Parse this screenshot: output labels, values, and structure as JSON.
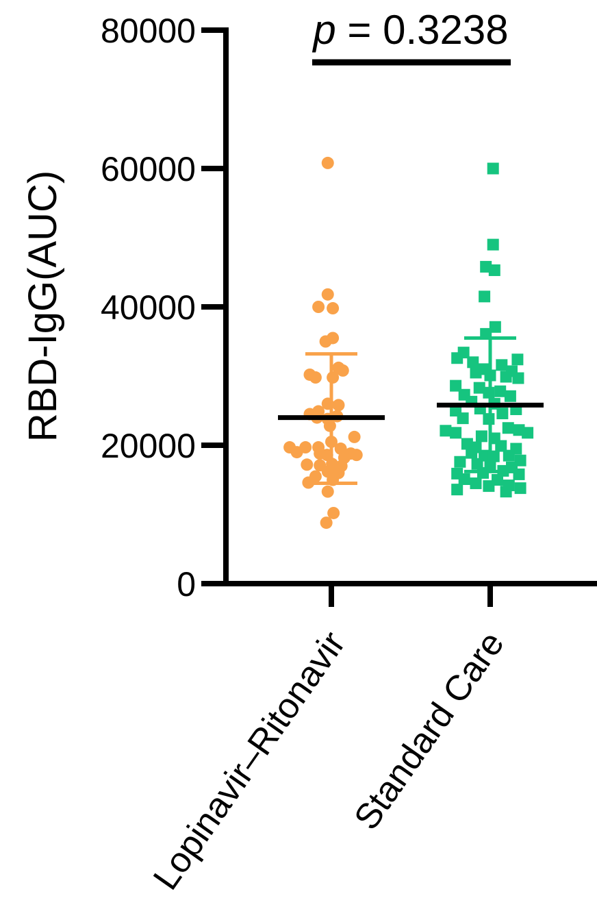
{
  "chart_data": {
    "type": "scatter",
    "subtype": "column-scatter-dot-plot",
    "ylabel": "RBD-IgG(AUC)",
    "ylim": [
      0,
      80000
    ],
    "yticks": [
      0,
      20000,
      40000,
      60000,
      80000
    ],
    "ytick_labels": [
      "0",
      "20000",
      "40000",
      "60000",
      "80000"
    ],
    "categories": [
      "Lopinavir–Ritonavir",
      "Standard Care"
    ],
    "grid": false,
    "legend": "none",
    "annotation": {
      "p_letter": "p",
      "p_rest": " = 0.3238"
    },
    "series": [
      {
        "category": "Lopinavir–Ritonavir",
        "color": "#F9A24A",
        "marker": "circle",
        "mean": 24000,
        "error_upper": 33200,
        "error_lower": 14500,
        "points": [
          {
            "offset": -0.05,
            "value": 60800
          },
          {
            "offset": -0.05,
            "value": 41800
          },
          {
            "offset": -0.18,
            "value": 40000
          },
          {
            "offset": 0.02,
            "value": 39800
          },
          {
            "offset": 0.02,
            "value": 35500
          },
          {
            "offset": -0.08,
            "value": 35000
          },
          {
            "offset": 0.1,
            "value": 31200
          },
          {
            "offset": 0.16,
            "value": 30800
          },
          {
            "offset": -0.3,
            "value": 30200
          },
          {
            "offset": -0.22,
            "value": 29800
          },
          {
            "offset": 0.02,
            "value": 29800
          },
          {
            "offset": -0.05,
            "value": 26000
          },
          {
            "offset": 0.1,
            "value": 25800
          },
          {
            "offset": -0.18,
            "value": 24900
          },
          {
            "offset": -0.3,
            "value": 24500
          },
          {
            "offset": -0.2,
            "value": 24000
          },
          {
            "offset": -0.05,
            "value": 23800
          },
          {
            "offset": 0.08,
            "value": 24200
          },
          {
            "offset": -0.02,
            "value": 22800
          },
          {
            "offset": 0.32,
            "value": 21200
          },
          {
            "offset": 0.0,
            "value": 20500
          },
          {
            "offset": -0.58,
            "value": 19700
          },
          {
            "offset": -0.36,
            "value": 19700
          },
          {
            "offset": -0.18,
            "value": 19700
          },
          {
            "offset": 0.13,
            "value": 19500
          },
          {
            "offset": -0.48,
            "value": 19000
          },
          {
            "offset": -0.16,
            "value": 18800
          },
          {
            "offset": -0.06,
            "value": 18600
          },
          {
            "offset": 0.27,
            "value": 18800
          },
          {
            "offset": 0.35,
            "value": 18600
          },
          {
            "offset": 0.18,
            "value": 18200
          },
          {
            "offset": -0.34,
            "value": 17200
          },
          {
            "offset": -0.16,
            "value": 17100
          },
          {
            "offset": 0.01,
            "value": 17300
          },
          {
            "offset": 0.14,
            "value": 17000
          },
          {
            "offset": -0.05,
            "value": 16200
          },
          {
            "offset": 0.1,
            "value": 16000
          },
          {
            "offset": -0.22,
            "value": 15500
          },
          {
            "offset": 0.02,
            "value": 15000
          },
          {
            "offset": -0.32,
            "value": 14600
          },
          {
            "offset": -0.05,
            "value": 13300
          },
          {
            "offset": 0.03,
            "value": 10200
          },
          {
            "offset": -0.07,
            "value": 8800
          }
        ]
      },
      {
        "category": "Standard Care",
        "color": "#16C47F",
        "marker": "square",
        "mean": 25800,
        "error_upper": 35500,
        "error_lower": 16200,
        "points": [
          {
            "offset": 0.04,
            "value": 60000
          },
          {
            "offset": 0.04,
            "value": 49000
          },
          {
            "offset": -0.06,
            "value": 45800
          },
          {
            "offset": 0.06,
            "value": 45300
          },
          {
            "offset": -0.08,
            "value": 41500
          },
          {
            "offset": 0.07,
            "value": 37100
          },
          {
            "offset": -0.06,
            "value": 36100
          },
          {
            "offset": -0.37,
            "value": 33400
          },
          {
            "offset": -0.46,
            "value": 32600
          },
          {
            "offset": 0.38,
            "value": 32400
          },
          {
            "offset": -0.24,
            "value": 32000
          },
          {
            "offset": 0.16,
            "value": 31600
          },
          {
            "offset": -0.1,
            "value": 31000
          },
          {
            "offset": -0.2,
            "value": 30500
          },
          {
            "offset": 0.3,
            "value": 30700
          },
          {
            "offset": 0.0,
            "value": 30100
          },
          {
            "offset": 0.22,
            "value": 29900
          },
          {
            "offset": 0.39,
            "value": 29700
          },
          {
            "offset": -0.48,
            "value": 28600
          },
          {
            "offset": -0.15,
            "value": 28300
          },
          {
            "offset": -0.02,
            "value": 27600
          },
          {
            "offset": 0.14,
            "value": 27800
          },
          {
            "offset": -0.36,
            "value": 27300
          },
          {
            "offset": 0.28,
            "value": 27100
          },
          {
            "offset": -0.26,
            "value": 26300
          },
          {
            "offset": 0.06,
            "value": 26000
          },
          {
            "offset": -0.48,
            "value": 25000
          },
          {
            "offset": -0.14,
            "value": 25300
          },
          {
            "offset": 0.36,
            "value": 25200
          },
          {
            "offset": 0.17,
            "value": 24600
          },
          {
            "offset": -0.38,
            "value": 23900
          },
          {
            "offset": -0.02,
            "value": 23800
          },
          {
            "offset": 0.25,
            "value": 22500
          },
          {
            "offset": -0.62,
            "value": 22100
          },
          {
            "offset": -0.48,
            "value": 21800
          },
          {
            "offset": 0.4,
            "value": 22200
          },
          {
            "offset": 0.52,
            "value": 21800
          },
          {
            "offset": -0.12,
            "value": 21300
          },
          {
            "offset": 0.06,
            "value": 21000
          },
          {
            "offset": -0.32,
            "value": 20200
          },
          {
            "offset": -0.2,
            "value": 19700
          },
          {
            "offset": 0.15,
            "value": 19900
          },
          {
            "offset": 0.36,
            "value": 19500
          },
          {
            "offset": -0.26,
            "value": 18900
          },
          {
            "offset": -0.08,
            "value": 18500
          },
          {
            "offset": 0.05,
            "value": 18400
          },
          {
            "offset": 0.26,
            "value": 18500
          },
          {
            "offset": -0.42,
            "value": 17600
          },
          {
            "offset": 0.42,
            "value": 17800
          },
          {
            "offset": -0.18,
            "value": 17300
          },
          {
            "offset": 0.0,
            "value": 17000
          },
          {
            "offset": 0.3,
            "value": 16800
          },
          {
            "offset": -0.46,
            "value": 15900
          },
          {
            "offset": -0.1,
            "value": 16000
          },
          {
            "offset": 0.18,
            "value": 16300
          },
          {
            "offset": 0.4,
            "value": 15800
          },
          {
            "offset": -0.36,
            "value": 15100
          },
          {
            "offset": 0.1,
            "value": 15000
          },
          {
            "offset": -0.2,
            "value": 14500
          },
          {
            "offset": 0.26,
            "value": 14200
          },
          {
            "offset": -0.46,
            "value": 13600
          },
          {
            "offset": -0.02,
            "value": 14100
          },
          {
            "offset": 0.42,
            "value": 13800
          },
          {
            "offset": 0.22,
            "value": 13300
          }
        ]
      }
    ]
  }
}
